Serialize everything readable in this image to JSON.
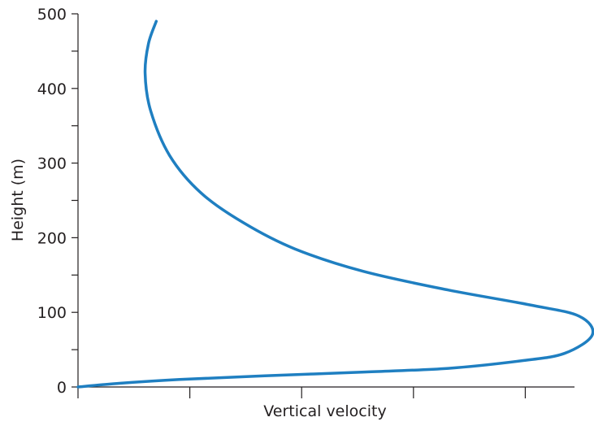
{
  "chart_data": {
    "type": "line",
    "title": "",
    "xlabel": "Vertical velocity",
    "ylabel": "Height (m)",
    "xlim": [
      0,
      4.6
    ],
    "ylim": [
      0,
      500
    ],
    "x_ticks": [
      0,
      1,
      2,
      3,
      4
    ],
    "x_tick_labels": [
      "",
      "",
      "",
      "",
      ""
    ],
    "y_ticks": [
      0,
      100,
      200,
      300,
      400,
      500
    ],
    "y_tick_labels": [
      "0",
      "100",
      "200",
      "300",
      "400",
      "500"
    ],
    "y_minor_ticks": [
      50,
      150,
      250,
      350,
      450
    ],
    "grid": false,
    "color": "#1f7fc1",
    "series": [
      {
        "x": [
          0.0,
          0.38,
          0.91,
          1.67,
          2.56,
          3.31,
          3.96,
          4.35,
          4.6,
          4.48,
          4.04,
          3.31,
          2.55,
          1.94,
          1.48,
          1.1,
          0.82,
          0.65,
          0.6,
          0.63,
          0.7
        ],
        "y": [
          0,
          5,
          10,
          15,
          20,
          25,
          35,
          45,
          70,
          95,
          110,
          130,
          155,
          185,
          220,
          260,
          310,
          370,
          420,
          460,
          490
        ]
      }
    ]
  }
}
